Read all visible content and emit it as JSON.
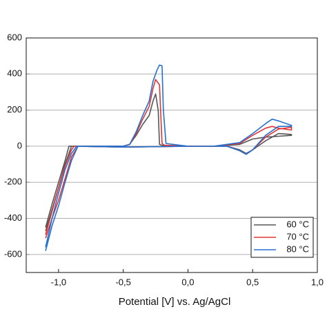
{
  "chart_data": {
    "type": "line",
    "x_label": "Potential [V] vs. Ag/AgCl",
    "xlim": [
      -1.25,
      1.0
    ],
    "xticks": [
      {
        "value": -1.0,
        "label": "-1,0"
      },
      {
        "value": -0.5,
        "label": "-0,5"
      },
      {
        "value": 0.0,
        "label": "0,0"
      },
      {
        "value": 0.5,
        "label": "0,5"
      },
      {
        "value": 1.0,
        "label": "1,0"
      }
    ],
    "ylim": [
      -700,
      600
    ],
    "yticks": [
      600,
      400,
      200,
      0,
      -200,
      -400,
      -600
    ],
    "grid": true,
    "legend": "bottom-right",
    "series": [
      {
        "name": "60 °C",
        "color": "#555555",
        "x": [
          -1.1,
          -1.05,
          -1.0,
          -0.95,
          -0.92,
          -0.9,
          -0.7,
          -0.5,
          -0.45,
          -0.4,
          -0.35,
          -0.3,
          -0.27,
          -0.25,
          -0.23,
          -0.22,
          -0.2,
          0,
          0.2,
          0.4,
          0.5,
          0.6,
          0.7,
          0.8,
          0.8,
          0.7,
          0.6,
          0.5,
          0.45,
          0.4,
          0.3,
          0,
          -0.5,
          -0.9,
          -0.95,
          -1.0,
          -1.05,
          -1.1
        ],
        "values": [
          -450,
          -320,
          -200,
          -80,
          0,
          0,
          0,
          0,
          10,
          60,
          120,
          170,
          250,
          290,
          200,
          10,
          5,
          0,
          0,
          10,
          40,
          50,
          55,
          60,
          65,
          70,
          30,
          -20,
          -40,
          -20,
          0,
          0,
          -5,
          0,
          -100,
          -230,
          -350,
          -470
        ]
      },
      {
        "name": "70 °C",
        "color": "#e03535",
        "x": [
          -1.1,
          -1.05,
          -1.0,
          -0.95,
          -0.9,
          -0.88,
          -0.7,
          -0.5,
          -0.45,
          -0.4,
          -0.35,
          -0.3,
          -0.27,
          -0.25,
          -0.22,
          -0.2,
          -0.18,
          0,
          0.2,
          0.4,
          0.5,
          0.6,
          0.65,
          0.7,
          0.8,
          0.8,
          0.7,
          0.6,
          0.5,
          0.45,
          0.4,
          0.3,
          0,
          -0.5,
          -0.85,
          -0.9,
          -0.95,
          -1.0,
          -1.05,
          -1.1
        ],
        "values": [
          -490,
          -360,
          -230,
          -110,
          -20,
          0,
          0,
          0,
          10,
          70,
          150,
          220,
          320,
          370,
          340,
          15,
          5,
          0,
          0,
          15,
          60,
          100,
          110,
          100,
          90,
          105,
          95,
          50,
          -20,
          -45,
          -25,
          0,
          0,
          -5,
          0,
          -60,
          -180,
          -300,
          -400,
          -510
        ]
      },
      {
        "name": "80 °C",
        "color": "#2470d0",
        "x": [
          -1.1,
          -1.05,
          -1.0,
          -0.95,
          -0.9,
          -0.86,
          -0.7,
          -0.5,
          -0.45,
          -0.4,
          -0.35,
          -0.3,
          -0.27,
          -0.24,
          -0.22,
          -0.2,
          -0.19,
          -0.17,
          0,
          0.2,
          0.4,
          0.5,
          0.6,
          0.65,
          0.7,
          0.8,
          0.8,
          0.7,
          0.6,
          0.5,
          0.45,
          0.4,
          0.3,
          0,
          -0.5,
          -0.85,
          -0.9,
          -0.95,
          -1.0,
          -1.05,
          -1.1
        ],
        "values": [
          -560,
          -400,
          -260,
          -130,
          -40,
          0,
          0,
          0,
          10,
          80,
          170,
          250,
          360,
          420,
          450,
          445,
          200,
          15,
          0,
          0,
          20,
          70,
          125,
          150,
          140,
          115,
          110,
          110,
          60,
          -20,
          -45,
          -25,
          0,
          0,
          -5,
          0,
          -80,
          -200,
          -330,
          -440,
          -580
        ]
      }
    ]
  }
}
